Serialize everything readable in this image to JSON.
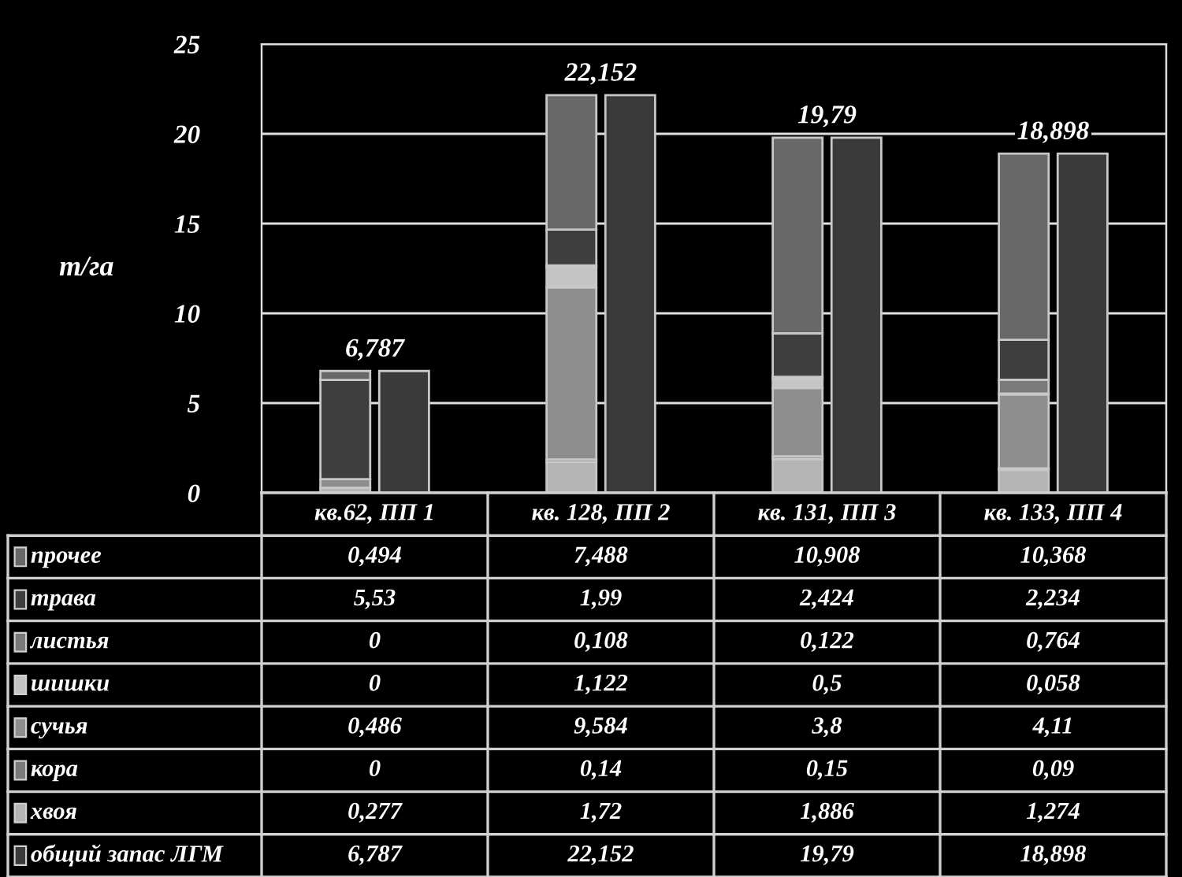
{
  "chart_data": {
    "type": "bar",
    "ylabel": "т/га",
    "categories": [
      "кв.62, ПП 1",
      "кв. 128, ПП 2",
      "кв. 131, ПП 3",
      "кв. 133, ПП 4"
    ],
    "stacked": true,
    "ylim": [
      0,
      25
    ],
    "yticks": [
      0,
      5,
      10,
      15,
      20,
      25
    ],
    "y2lim": [
      0,
      25
    ],
    "grid": "y",
    "legend": "bottom left",
    "totals": [
      "6,787",
      "22,152",
      "19,79",
      "18,898"
    ],
    "series": [
      {
        "name": "хвоя",
        "color": "#b4b4b4",
        "values": [
          0.277,
          1.72,
          1.886,
          1.274
        ],
        "value_labels": [
          "0,277",
          "1,72",
          "1,886",
          "1,274"
        ]
      },
      {
        "name": "кора",
        "color": "#7a7a7a",
        "values": [
          0,
          0.14,
          0.15,
          0.09
        ],
        "value_labels": [
          "0",
          "0,14",
          "0,15",
          "0,09"
        ]
      },
      {
        "name": "сучья",
        "color": "#8e8e8e",
        "values": [
          0.486,
          9.584,
          3.8,
          4.11
        ],
        "value_labels": [
          "0,486",
          "9,584",
          "3,8",
          "4,11"
        ]
      },
      {
        "name": "шишки",
        "color": "#c4c4c4",
        "values": [
          0,
          1.122,
          0.5,
          0.058
        ],
        "value_labels": [
          "0",
          "1,122",
          "0,5",
          "0,058"
        ]
      },
      {
        "name": "листья",
        "color": "#7a7a7a",
        "values": [
          0,
          0.108,
          0.122,
          0.764
        ],
        "value_labels": [
          "0",
          "0,108",
          "0,122",
          "0,764"
        ]
      },
      {
        "name": "трава",
        "color": "#3e3e3e",
        "values": [
          5.53,
          1.99,
          2.424,
          2.234
        ],
        "value_labels": [
          "5,53",
          "1,99",
          "2,424",
          "2,234"
        ]
      },
      {
        "name": "прочее",
        "color": "#686868",
        "values": [
          0.494,
          7.488,
          10.908,
          10.368
        ],
        "value_labels": [
          "0,494",
          "7,488",
          "10,908",
          "10,368"
        ]
      },
      {
        "name": "общий запас ЛГМ",
        "color": "#3a3a3a",
        "axis": "y2",
        "values": [
          6.787,
          22.152,
          19.79,
          18.898
        ],
        "value_labels": [
          "6,787",
          "22,152",
          "19,79",
          "18,898"
        ]
      }
    ]
  }
}
